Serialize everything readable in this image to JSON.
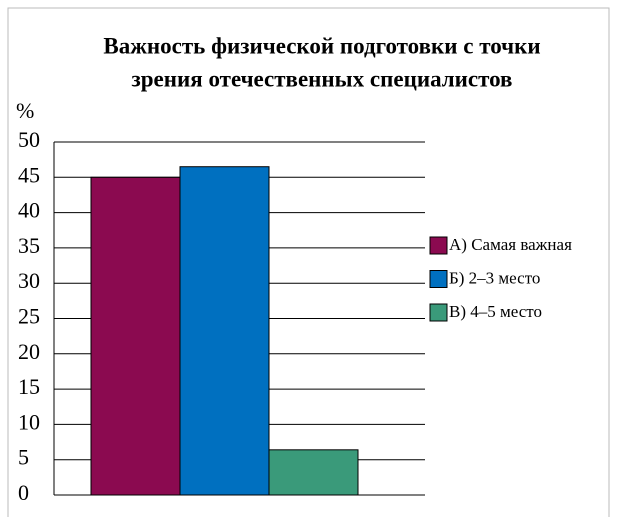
{
  "chart_data": {
    "type": "bar",
    "title": [
      "Важность физической подготовки с точки",
      "зрения отечественных специалистов"
    ],
    "y_label": "%",
    "series": [
      {
        "name": "А) Самая важная",
        "color": "#8b0a50",
        "values": [
          45
        ]
      },
      {
        "name": "Б) 2–3 место",
        "color": "#0070c0",
        "values": [
          46.5
        ]
      },
      {
        "name": "В) 4–5 место",
        "color": "#3a9a7a",
        "values": [
          6.4
        ]
      }
    ],
    "ylim": [
      0,
      50
    ],
    "yticks": [
      0,
      5,
      10,
      15,
      20,
      25,
      30,
      35,
      40,
      45,
      50
    ],
    "grid": true,
    "legend": "right"
  }
}
